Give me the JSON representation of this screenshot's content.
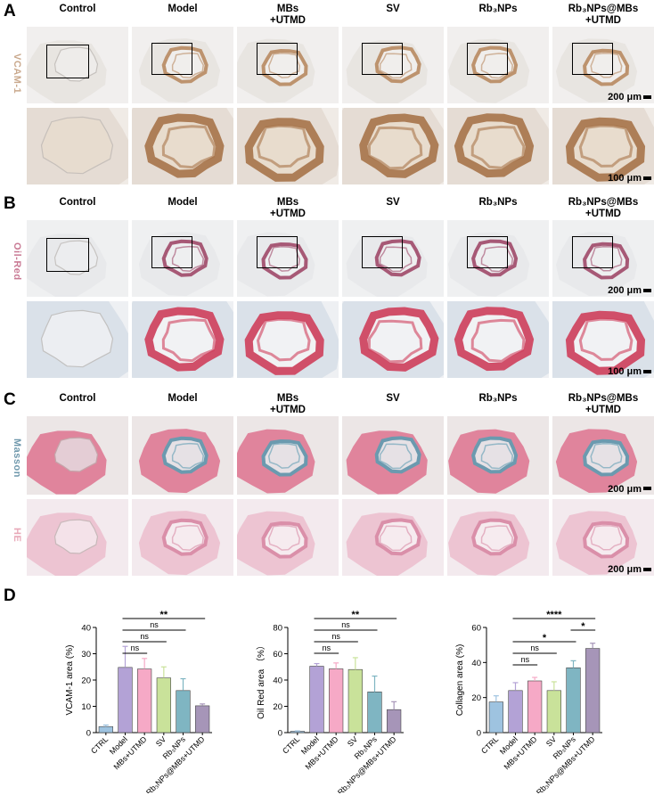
{
  "columns": [
    "Control",
    "Model",
    "MBs\n+UTMD",
    "SV",
    "Rb₃NPs",
    "Rb₃NPs@MBs\n+UTMD"
  ],
  "panels": {
    "A": {
      "letter": "A",
      "stain": "VCAM-1",
      "scale_top": "200 μm",
      "scale_bottom": "100 μm"
    },
    "B": {
      "letter": "B",
      "stain": "Oil-Red",
      "scale_top": "200 μm",
      "scale_bottom": "100 μm"
    },
    "C": {
      "letter": "C",
      "stain_top": "Masson",
      "stain_bottom": "HE",
      "scale_top": "200 μm",
      "scale_bottom": "200 μm"
    },
    "D": {
      "letter": "D"
    }
  },
  "colors": {
    "vcam_label": "#c9a88c",
    "oil_label": "#c97a94",
    "masson_label": "#6f98ac",
    "he_label": "#e8a8b8",
    "bars": [
      "#9ec3e0",
      "#b3a2d6",
      "#f6a9c6",
      "#c9e29a",
      "#7fb5c2",
      "#a695b8"
    ]
  },
  "chart_data": [
    {
      "type": "bar",
      "ylabel": "VCAM-1 area (%)",
      "categories": [
        "CTRL",
        "Model",
        "MBs+UTMD",
        "SV",
        "Rb₃NPs",
        "Rb₃NPs@MBs+UTMD"
      ],
      "values": [
        2.3,
        24.8,
        24.2,
        20.8,
        16.0,
        10.2
      ],
      "errors": [
        0.6,
        8.0,
        4.0,
        4.2,
        4.5,
        0.7
      ],
      "ylim": [
        0,
        40
      ],
      "yticks": [
        0,
        10,
        20,
        30,
        40
      ],
      "comparisons": [
        {
          "from": 1,
          "to": 5,
          "label": "**"
        },
        {
          "from": 1,
          "to": 4,
          "label": "ns"
        },
        {
          "from": 1,
          "to": 3,
          "label": "ns"
        },
        {
          "from": 1,
          "to": 2,
          "label": "ns"
        }
      ]
    },
    {
      "type": "bar",
      "ylabel": "Oil Red area （%）",
      "categories": [
        "CTRL",
        "Model",
        "MBs+UTMD",
        "SV",
        "Rb₃NPs",
        "Rb₃NPs@MBs+UTMD"
      ],
      "values": [
        1.0,
        50.5,
        48.5,
        48.0,
        31.0,
        17.5
      ],
      "errors": [
        0.3,
        2.0,
        4.5,
        9.0,
        12.0,
        6.0
      ],
      "ylim": [
        0,
        80
      ],
      "yticks": [
        0,
        20,
        40,
        60,
        80
      ],
      "comparisons": [
        {
          "from": 1,
          "to": 5,
          "label": "**"
        },
        {
          "from": 1,
          "to": 4,
          "label": "ns"
        },
        {
          "from": 1,
          "to": 3,
          "label": "ns"
        },
        {
          "from": 1,
          "to": 2,
          "label": "ns"
        }
      ]
    },
    {
      "type": "bar",
      "ylabel": "Collagen area (%)",
      "categories": [
        "CTRL",
        "Model",
        "MBs+UTMD",
        "SV",
        "Rb₃NPs",
        "Rb₃NPs@MBs+UTMD"
      ],
      "values": [
        17.5,
        24.0,
        29.5,
        24.0,
        37.0,
        48.0
      ],
      "errors": [
        3.5,
        4.5,
        2.0,
        5.0,
        4.0,
        3.0
      ],
      "ylim": [
        0,
        60
      ],
      "yticks": [
        0,
        20,
        40,
        60
      ],
      "comparisons": [
        {
          "from": 1,
          "to": 5,
          "label": "****"
        },
        {
          "from": 4,
          "to": 5,
          "label": "*"
        },
        {
          "from": 1,
          "to": 4,
          "label": "*"
        },
        {
          "from": 1,
          "to": 3,
          "label": "ns"
        },
        {
          "from": 1,
          "to": 2,
          "label": "ns"
        }
      ]
    }
  ]
}
